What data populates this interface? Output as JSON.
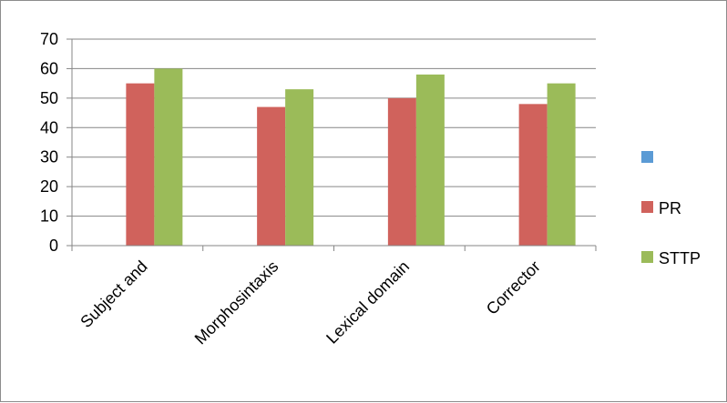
{
  "chart_data": {
    "type": "bar",
    "categories": [
      "Subject and",
      "Morphosintaxis",
      "Lexical domain",
      "Corrector"
    ],
    "series": [
      {
        "name": "",
        "color": "#5b9bd5",
        "values": [
          0,
          0,
          0,
          0
        ]
      },
      {
        "name": "PR",
        "color": "#d0625c",
        "values": [
          55,
          47,
          50,
          48
        ]
      },
      {
        "name": "STTP",
        "color": "#9bbb59",
        "values": [
          60,
          53,
          58,
          55
        ]
      }
    ],
    "y_ticks": [
      "0",
      "10",
      "20",
      "30",
      "40",
      "50",
      "60",
      "70"
    ],
    "ylim": [
      0,
      70
    ],
    "grid": true,
    "legend_position": "right",
    "x_tick_rotation": "diagonal",
    "title": "",
    "xlabel": "",
    "ylabel": ""
  }
}
